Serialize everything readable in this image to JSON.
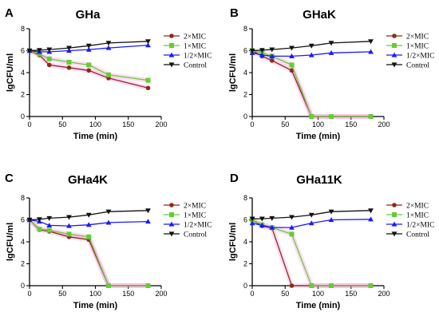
{
  "figure": {
    "panels": [
      {
        "letter": "A",
        "title": "GHa"
      },
      {
        "letter": "B",
        "title": "GHaK"
      },
      {
        "letter": "C",
        "title": "GHa4K"
      },
      {
        "letter": "D",
        "title": "GHa11K"
      }
    ]
  },
  "colors": {
    "2xMIC": "#8b2a1a",
    "1xMIC": "#66cc33",
    "1/2xMIC": "#1a1aff",
    "Control": "#111111",
    "error_band": "#ff66cc"
  },
  "chart_data": [
    {
      "type": "line",
      "title": "GHa",
      "xlabel": "Time (min)",
      "ylabel": "lgCFU/ml",
      "xlim": [
        0,
        200
      ],
      "ylim": [
        0,
        8
      ],
      "xticks": [
        0,
        50,
        100,
        150,
        200
      ],
      "yticks": [
        0,
        2,
        4,
        6,
        8
      ],
      "legend_position": "right",
      "x": [
        0,
        15,
        30,
        60,
        90,
        120,
        180
      ],
      "series": [
        {
          "name": "2×MIC",
          "marker": "circle",
          "values": [
            6.0,
            5.6,
            4.7,
            4.45,
            4.2,
            3.5,
            2.6
          ]
        },
        {
          "name": "1×MIC",
          "marker": "square",
          "values": [
            6.0,
            5.7,
            5.25,
            4.95,
            4.7,
            3.8,
            3.3
          ]
        },
        {
          "name": "1/2×MIC",
          "marker": "triangle-up",
          "values": [
            6.0,
            5.9,
            5.9,
            6.0,
            6.1,
            6.25,
            6.5
          ]
        },
        {
          "name": "Control",
          "marker": "triangle-down",
          "values": [
            6.0,
            6.05,
            6.1,
            6.25,
            6.45,
            6.7,
            6.85
          ]
        }
      ]
    },
    {
      "type": "line",
      "title": "GHaK",
      "xlabel": "Time (min)",
      "ylabel": "lgCFU/ml",
      "xlim": [
        0,
        200
      ],
      "ylim": [
        0,
        8
      ],
      "xticks": [
        0,
        50,
        100,
        150,
        200
      ],
      "yticks": [
        0,
        2,
        4,
        6,
        8
      ],
      "legend_position": "right",
      "x": [
        0,
        15,
        30,
        60,
        90,
        120,
        180
      ],
      "series": [
        {
          "name": "2×MIC",
          "marker": "circle",
          "values": [
            6.0,
            5.5,
            5.1,
            4.2,
            0,
            0,
            0
          ]
        },
        {
          "name": "1×MIC",
          "marker": "square",
          "values": [
            6.0,
            5.8,
            5.5,
            4.7,
            0,
            0,
            0
          ]
        },
        {
          "name": "1/2×MIC",
          "marker": "triangle-up",
          "values": [
            5.8,
            5.6,
            5.5,
            5.5,
            5.6,
            5.8,
            5.9
          ]
        },
        {
          "name": "Control",
          "marker": "triangle-down",
          "values": [
            6.0,
            6.05,
            6.1,
            6.25,
            6.45,
            6.7,
            6.85
          ]
        }
      ]
    },
    {
      "type": "line",
      "title": "GHa4K",
      "xlabel": "Time (min)",
      "ylabel": "lgCFU/ml",
      "xlim": [
        0,
        200
      ],
      "ylim": [
        0,
        8
      ],
      "xticks": [
        0,
        50,
        100,
        150,
        200
      ],
      "yticks": [
        0,
        2,
        4,
        6,
        8
      ],
      "legend_position": "right",
      "x": [
        0,
        15,
        30,
        60,
        90,
        120,
        180
      ],
      "series": [
        {
          "name": "2×MIC",
          "marker": "circle",
          "values": [
            6.0,
            5.1,
            4.95,
            4.45,
            4.2,
            0,
            0
          ]
        },
        {
          "name": "1×MIC",
          "marker": "square",
          "values": [
            6.0,
            5.15,
            5.05,
            4.7,
            4.45,
            0,
            0
          ]
        },
        {
          "name": "1/2×MIC",
          "marker": "triangle-up",
          "values": [
            6.0,
            5.85,
            5.5,
            5.45,
            5.55,
            5.75,
            5.85
          ]
        },
        {
          "name": "Control",
          "marker": "triangle-down",
          "values": [
            6.0,
            6.05,
            6.15,
            6.25,
            6.45,
            6.75,
            6.85
          ]
        }
      ]
    },
    {
      "type": "line",
      "title": "GHa11K",
      "xlabel": "Time (min)",
      "ylabel": "lgCFU/ml",
      "xlim": [
        0,
        200
      ],
      "ylim": [
        0,
        8
      ],
      "xticks": [
        0,
        50,
        100,
        150,
        200
      ],
      "yticks": [
        0,
        2,
        4,
        6,
        8
      ],
      "legend_position": "right",
      "x": [
        0,
        15,
        30,
        60,
        90,
        120,
        180
      ],
      "series": [
        {
          "name": "2×MIC",
          "marker": "circle",
          "values": [
            6.0,
            5.45,
            5.25,
            0,
            0,
            0,
            0
          ]
        },
        {
          "name": "1×MIC",
          "marker": "square",
          "values": [
            6.0,
            5.55,
            5.3,
            4.7,
            0,
            0,
            0
          ]
        },
        {
          "name": "1/2×MIC",
          "marker": "triangle-up",
          "values": [
            5.7,
            5.5,
            5.3,
            5.3,
            5.7,
            6.0,
            6.05
          ]
        },
        {
          "name": "Control",
          "marker": "triangle-down",
          "values": [
            6.1,
            6.1,
            6.15,
            6.25,
            6.45,
            6.75,
            6.85
          ]
        }
      ]
    }
  ]
}
